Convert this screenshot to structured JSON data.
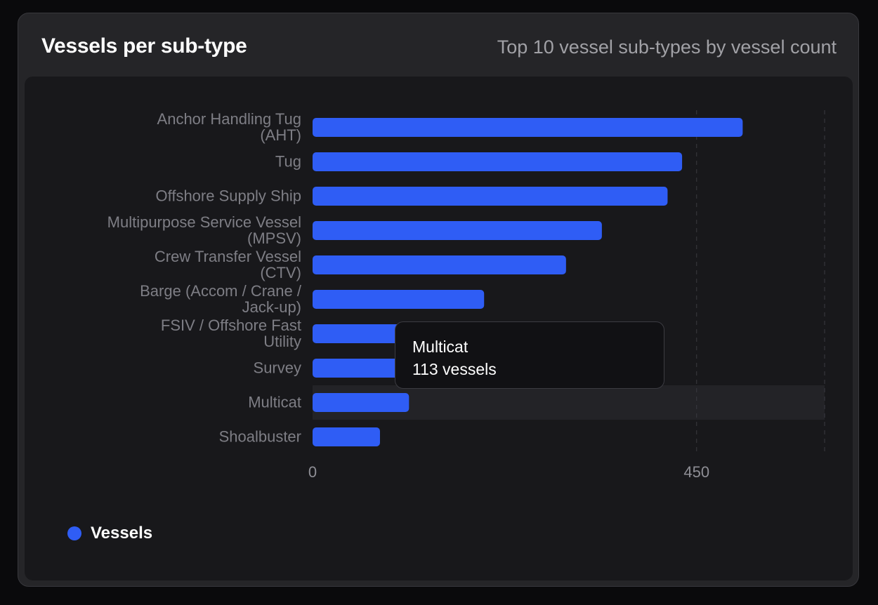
{
  "card": {
    "title": "Vessels per sub-type",
    "subtitle": "Top 10 vessel sub-types by vessel count"
  },
  "chart_data": {
    "type": "bar",
    "orientation": "horizontal",
    "categories": [
      [
        "Anchor Handling Tug",
        "(AHT)"
      ],
      [
        "Tug"
      ],
      [
        "Offshore Supply Ship"
      ],
      [
        "Multipurpose Service Vessel",
        "(MPSV)"
      ],
      [
        "Crew Transfer Vessel",
        "(CTV)"
      ],
      [
        "Barge (Accom / Crane /",
        "Jack-up)"
      ],
      [
        "FSIV / Offshore Fast",
        "Utility"
      ],
      [
        "Survey"
      ],
      [
        "Multicat"
      ],
      [
        "Shoalbuster"
      ]
    ],
    "series": [
      {
        "name": "Vessels",
        "color": "#2f5df5",
        "values": [
          504,
          433,
          416,
          339,
          297,
          201,
          136,
          118,
          113,
          79
        ]
      }
    ],
    "xlim": [
      0,
      600
    ],
    "xticks": [
      0,
      450
    ],
    "grid": "vertical-dashed",
    "legend": "bottom-left",
    "highlighted_category": "Multicat"
  },
  "tooltip": {
    "title": "Multicat",
    "value": "113 vessels"
  },
  "legend": {
    "label": "Vessels",
    "color": "#2f5df5"
  }
}
